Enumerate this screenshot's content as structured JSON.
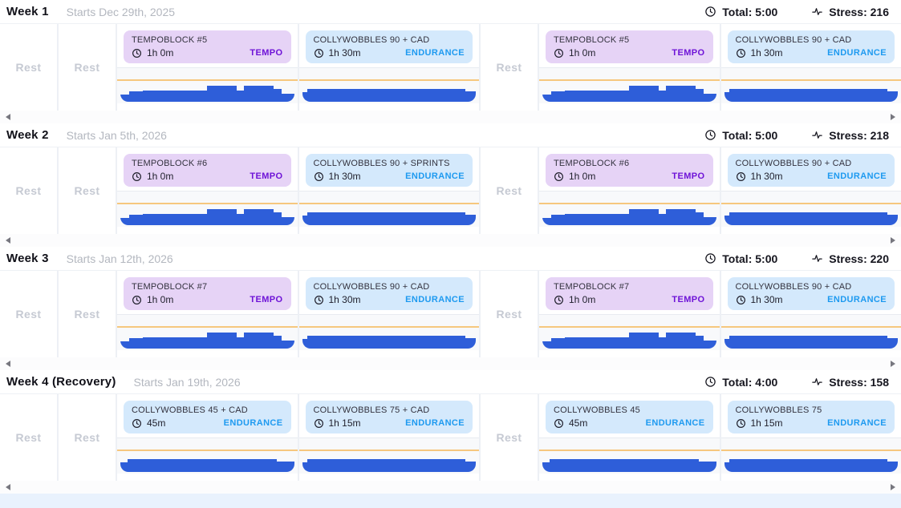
{
  "colors": {
    "tempo_bg": "#e6d3f6",
    "tempo_badge": "#6e13d7",
    "endurance_bg": "#d4e9fc",
    "endurance_badge": "#1e9af0",
    "bar": "#2e5ed9",
    "target_line": "#f6c77e",
    "page_bg": "#e9f2fd"
  },
  "icons": {
    "total": "clock-icon",
    "stress": "activity-icon",
    "workout_duration": "clock-icon",
    "scroll_left": "scroll-left-icon",
    "scroll_right": "scroll-right-icon"
  },
  "profiles": {
    "tempo": [
      [
        5,
        24
      ],
      [
        8,
        34
      ],
      [
        37,
        36
      ],
      [
        17,
        51
      ],
      [
        4,
        36
      ],
      [
        17,
        51
      ],
      [
        5,
        40
      ],
      [
        7,
        26
      ]
    ],
    "endurance90": [
      [
        3,
        30
      ],
      [
        4,
        40
      ],
      [
        87,
        41
      ],
      [
        6,
        33
      ]
    ],
    "endurance45": [
      [
        4,
        30
      ],
      [
        6,
        41
      ],
      [
        80,
        42
      ],
      [
        10,
        34
      ]
    ],
    "endurance75": [
      [
        3,
        30
      ],
      [
        4,
        42
      ],
      [
        87,
        42
      ],
      [
        6,
        34
      ]
    ]
  },
  "weeks": [
    {
      "title": "Week 1",
      "subtitle": "Starts Dec 29th, 2025",
      "total": "Total: 5:00",
      "stress": "Stress: 216",
      "days": [
        {
          "type": "rest",
          "label": "Rest"
        },
        {
          "type": "rest",
          "label": "Rest"
        },
        {
          "type": "workout",
          "name": "TEMPOBLOCK #5",
          "duration": "1h 0m",
          "badge": "TEMPO",
          "category": "tempo",
          "profile": "tempo"
        },
        {
          "type": "workout",
          "name": "COLLYWOBBLES 90 + CAD",
          "duration": "1h 30m",
          "badge": "ENDURANCE",
          "category": "endurance",
          "profile": "endurance90"
        },
        {
          "type": "rest",
          "label": "Rest"
        },
        {
          "type": "workout",
          "name": "TEMPOBLOCK #5",
          "duration": "1h 0m",
          "badge": "TEMPO",
          "category": "tempo",
          "profile": "tempo"
        },
        {
          "type": "workout",
          "name": "COLLYWOBBLES 90 + CAD",
          "duration": "1h 30m",
          "badge": "ENDURANCE",
          "category": "endurance",
          "profile": "endurance90"
        }
      ]
    },
    {
      "title": "Week 2",
      "subtitle": "Starts Jan 5th, 2026",
      "total": "Total: 5:00",
      "stress": "Stress: 218",
      "days": [
        {
          "type": "rest",
          "label": "Rest"
        },
        {
          "type": "rest",
          "label": "Rest"
        },
        {
          "type": "workout",
          "name": "TEMPOBLOCK #6",
          "duration": "1h 0m",
          "badge": "TEMPO",
          "category": "tempo",
          "profile": "tempo"
        },
        {
          "type": "workout",
          "name": "COLLYWOBBLES 90 + SPRINTS",
          "duration": "1h 30m",
          "badge": "ENDURANCE",
          "category": "endurance",
          "profile": "endurance90"
        },
        {
          "type": "rest",
          "label": "Rest"
        },
        {
          "type": "workout",
          "name": "TEMPOBLOCK #6",
          "duration": "1h 0m",
          "badge": "TEMPO",
          "category": "tempo",
          "profile": "tempo"
        },
        {
          "type": "workout",
          "name": "COLLYWOBBLES 90 + CAD",
          "duration": "1h 30m",
          "badge": "ENDURANCE",
          "category": "endurance",
          "profile": "endurance90"
        }
      ]
    },
    {
      "title": "Week 3",
      "subtitle": "Starts Jan 12th, 2026",
      "total": "Total: 5:00",
      "stress": "Stress: 220",
      "days": [
        {
          "type": "rest",
          "label": "Rest"
        },
        {
          "type": "rest",
          "label": "Rest"
        },
        {
          "type": "workout",
          "name": "TEMPOBLOCK #7",
          "duration": "1h 0m",
          "badge": "TEMPO",
          "category": "tempo",
          "profile": "tempo"
        },
        {
          "type": "workout",
          "name": "COLLYWOBBLES 90 + CAD",
          "duration": "1h 30m",
          "badge": "ENDURANCE",
          "category": "endurance",
          "profile": "endurance90"
        },
        {
          "type": "rest",
          "label": "Rest"
        },
        {
          "type": "workout",
          "name": "TEMPOBLOCK #7",
          "duration": "1h 0m",
          "badge": "TEMPO",
          "category": "tempo",
          "profile": "tempo"
        },
        {
          "type": "workout",
          "name": "COLLYWOBBLES 90 + CAD",
          "duration": "1h 30m",
          "badge": "ENDURANCE",
          "category": "endurance",
          "profile": "endurance90"
        }
      ]
    },
    {
      "title": "Week 4 (Recovery)",
      "subtitle": "Starts Jan 19th, 2026",
      "total": "Total: 4:00",
      "stress": "Stress: 158",
      "days": [
        {
          "type": "rest",
          "label": "Rest"
        },
        {
          "type": "rest",
          "label": "Rest"
        },
        {
          "type": "workout",
          "name": "COLLYWOBBLES 45 + CAD",
          "duration": "45m",
          "badge": "ENDURANCE",
          "category": "endurance",
          "profile": "endurance45"
        },
        {
          "type": "workout",
          "name": "COLLYWOBBLES 75 + CAD",
          "duration": "1h 15m",
          "badge": "ENDURANCE",
          "category": "endurance",
          "profile": "endurance75"
        },
        {
          "type": "rest",
          "label": "Rest"
        },
        {
          "type": "workout",
          "name": "COLLYWOBBLES 45",
          "duration": "45m",
          "badge": "ENDURANCE",
          "category": "endurance",
          "profile": "endurance45"
        },
        {
          "type": "workout",
          "name": "COLLYWOBBLES 75",
          "duration": "1h 15m",
          "badge": "ENDURANCE",
          "category": "endurance",
          "profile": "endurance75"
        }
      ]
    }
  ]
}
